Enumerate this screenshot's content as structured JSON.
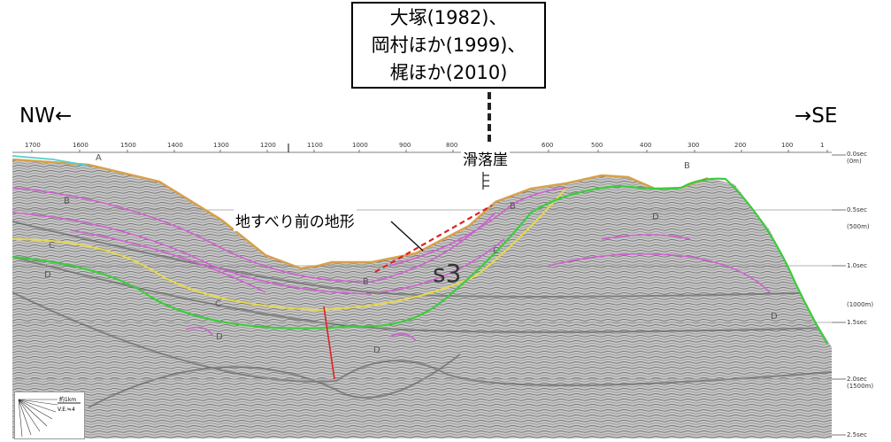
{
  "reference": {
    "lines": [
      "大塚(1982)、",
      "岡村ほか(1999)、",
      "梶ほか(2010)"
    ]
  },
  "direction": {
    "left": "NW←",
    "right": "→SE"
  },
  "annotations": {
    "scarp": "滑落崖",
    "pre_slide": "地すべり前の地形",
    "unit": "s3"
  },
  "shot_points": [
    "1700",
    "1600",
    "1500",
    "1400",
    "1300",
    "1200",
    "1100",
    "1000",
    "900",
    "800",
    "600",
    "500",
    "400",
    "300",
    "200",
    "100",
    "1"
  ],
  "depth_labels": [
    {
      "sec": "0.0sec",
      "m": "(0m)"
    },
    {
      "sec": "0.5sec",
      "m": "(500m)"
    },
    {
      "sec": "1.0sec",
      "m": ""
    },
    {
      "sec": "",
      "m": "(1000m)"
    },
    {
      "sec": "1.5sec",
      "m": ""
    },
    {
      "sec": "2.0sec",
      "m": "(1500m)"
    },
    {
      "sec": "2.5sec",
      "m": ""
    }
  ],
  "horizons": [
    {
      "label": "A",
      "color": "#e0e020"
    },
    {
      "label": "B",
      "color": "#cc55cc"
    },
    {
      "label": "C",
      "color": "#44cc44"
    },
    {
      "label": "D",
      "color": "#555555"
    }
  ],
  "scale": {
    "distance": "約1km",
    "ve": "V.E.≒4"
  },
  "colors": {
    "seafloor": "#d7a04a",
    "horizon_a": "#e6d84a",
    "horizon_b": "#d060d0",
    "horizon_c": "#3ccc3c",
    "water_top": "#50d0d0",
    "fault": "#dd2222",
    "pre_slide_line": "#dd2222"
  }
}
